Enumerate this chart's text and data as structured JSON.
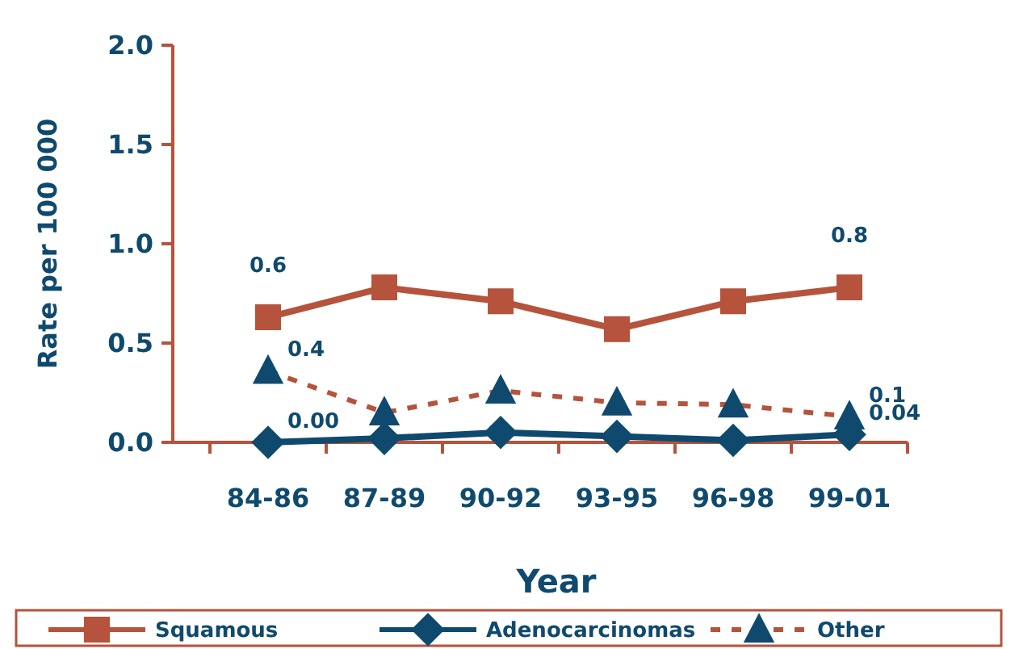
{
  "chart_data": {
    "type": "line",
    "xlabel": "Year",
    "ylabel": "Rate per 100 000",
    "categories": [
      "84-86",
      "87-89",
      "90-92",
      "93-95",
      "96-98",
      "99-01"
    ],
    "ylim": [
      0,
      2
    ],
    "yticks": [
      {
        "value": 0,
        "label": "0.0"
      },
      {
        "value": 0.5,
        "label": "0.5"
      },
      {
        "value": 1,
        "label": "1.0"
      },
      {
        "value": 1.5,
        "label": "1.5"
      },
      {
        "value": 2,
        "label": "2.0"
      }
    ],
    "grid": false,
    "legend": "bottom",
    "series": [
      {
        "name": "Squamous",
        "color": "#b5533c",
        "marker": "square",
        "line_style": "solid",
        "values": [
          0.63,
          0.78,
          0.71,
          0.57,
          0.71,
          0.78
        ],
        "value_labels": [
          "0.6",
          null,
          null,
          null,
          null,
          "0.8"
        ]
      },
      {
        "name": "Adenocarcinomas",
        "color": "#0f4a6e",
        "marker": "diamond",
        "line_style": "solid",
        "values": [
          0.0,
          0.02,
          0.05,
          0.03,
          0.01,
          0.04
        ],
        "value_labels": [
          "0.00",
          null,
          null,
          null,
          null,
          "0.04"
        ]
      },
      {
        "name": "Other",
        "color": "#b5533c",
        "colors": [
          "#0f4a6e",
          "#0f4a6e",
          "#0f4a6e",
          "#0f4a6e",
          "#0f4a6e",
          "#0f4a6e"
        ],
        "marker": "triangle",
        "line_style": "dashed",
        "values": [
          0.36,
          0.15,
          0.26,
          0.2,
          0.19,
          0.13
        ],
        "value_labels": [
          "0.4",
          null,
          null,
          null,
          null,
          "0.1"
        ]
      }
    ]
  }
}
